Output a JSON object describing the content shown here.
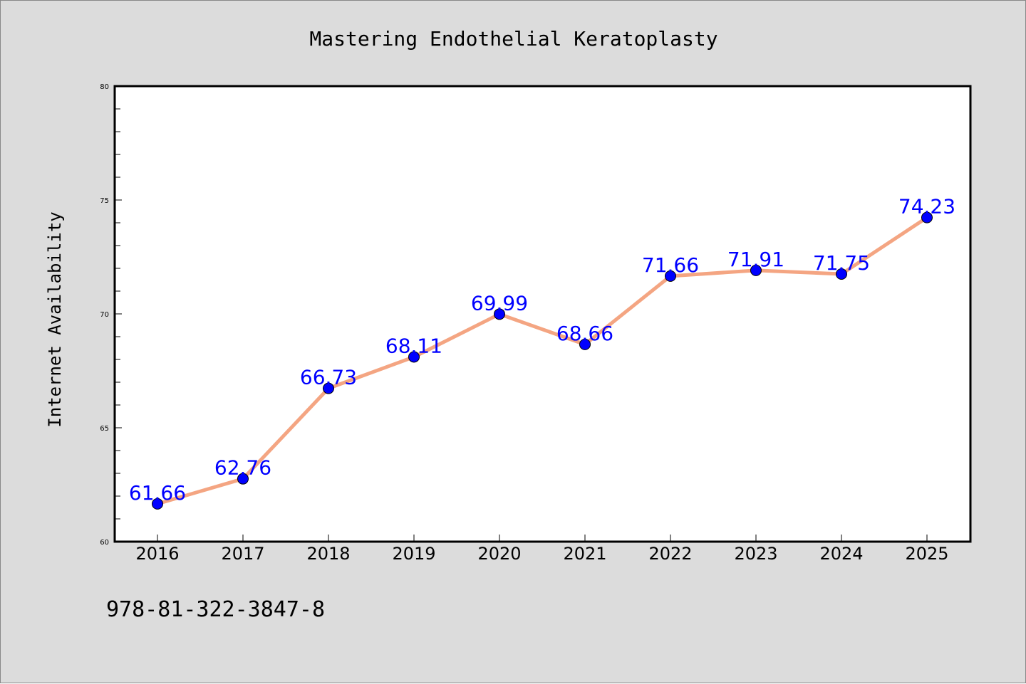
{
  "chart_data": {
    "type": "line",
    "title": "Mastering Endothelial Keratoplasty",
    "xlabel": "",
    "ylabel": "Internet Availability",
    "categories": [
      "2016",
      "2017",
      "2018",
      "2019",
      "2020",
      "2021",
      "2022",
      "2023",
      "2024",
      "2025"
    ],
    "series": [
      {
        "values": [
          61.66,
          62.76,
          66.73,
          68.11,
          69.99,
          68.66,
          71.66,
          71.91,
          71.75,
          74.23
        ]
      }
    ],
    "ylim": [
      60,
      80
    ],
    "yticks": [
      60,
      65,
      70,
      75,
      80
    ],
    "grid": false,
    "line_color": "#f4a582",
    "marker_color": "#0000ff",
    "label_color": "#0000ff"
  },
  "footer": {
    "isbn": "978-81-322-3847-8"
  }
}
